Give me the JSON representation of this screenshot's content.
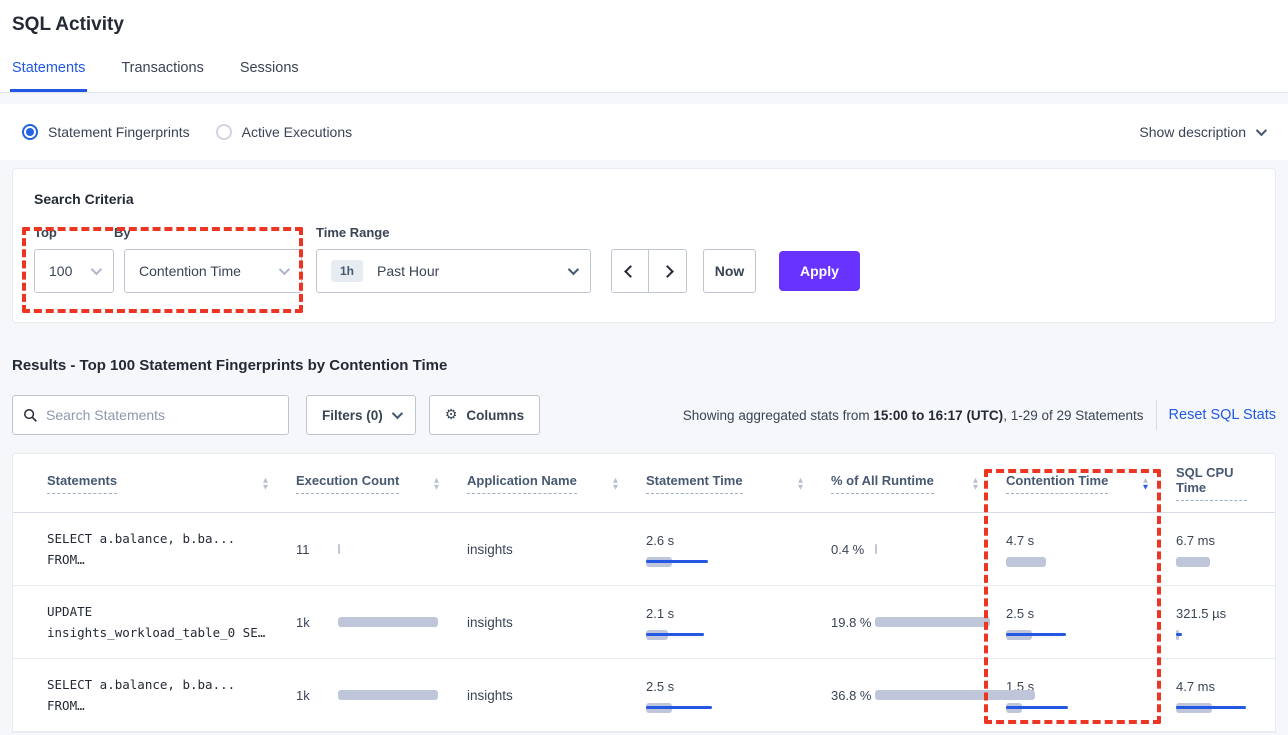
{
  "page": {
    "title": "SQL Activity"
  },
  "tabs": [
    {
      "label": "Statements"
    },
    {
      "label": "Transactions"
    },
    {
      "label": "Sessions"
    }
  ],
  "view_toggle": {
    "options": [
      {
        "label": "Statement Fingerprints",
        "selected": true
      },
      {
        "label": "Active Executions",
        "selected": false
      }
    ],
    "show_description": "Show description"
  },
  "search_criteria": {
    "title": "Search Criteria",
    "top": {
      "label": "Top",
      "value": "100"
    },
    "by": {
      "label": "By",
      "value": "Contention Time"
    },
    "time_range": {
      "label": "Time Range",
      "badge": "1h",
      "value": "Past Hour"
    },
    "now_label": "Now",
    "apply_label": "Apply"
  },
  "results": {
    "heading": "Results - Top 100 Statement Fingerprints by Contention Time",
    "search_placeholder": "Search Statements",
    "filters_label": "Filters (0)",
    "columns_label": "Columns",
    "gear_icon": "⚙",
    "stats_prefix": "Showing aggregated stats from ",
    "stats_bold": "15:00 to 16:17 (UTC)",
    "stats_suffix": ", 1-29 of 29 Statements",
    "reset_link": "Reset SQL Stats"
  },
  "table": {
    "columns": [
      {
        "label": "Statements",
        "sort": "none"
      },
      {
        "label": "Execution Count",
        "sort": "none"
      },
      {
        "label": "Application Name",
        "sort": "none"
      },
      {
        "label": "Statement Time",
        "sort": "none"
      },
      {
        "label": "% of All Runtime",
        "sort": "none"
      },
      {
        "label": "Contention Time",
        "sort": "desc"
      },
      {
        "label": "SQL CPU Time",
        "sort": "none"
      }
    ],
    "rows": [
      {
        "statement": [
          "SELECT a.balance, b.ba...",
          "FROM…"
        ],
        "exec": {
          "value": "11",
          "gray": 2,
          "blue": 0
        },
        "app": "insights",
        "stmt_time": {
          "value": "2.6 s",
          "gray": 26,
          "blue": 62
        },
        "pct": {
          "value": "0.4 %",
          "gray": 2,
          "blue": 0
        },
        "contention": {
          "value": "4.7 s",
          "gray": 40,
          "blue": 0
        },
        "cpu": {
          "value": "6.7 ms",
          "gray": 34,
          "blue": 0
        }
      },
      {
        "statement": [
          "UPDATE",
          "insights_workload_table_0 SE…"
        ],
        "exec": {
          "value": "1k",
          "gray": 100,
          "blue": 0
        },
        "app": "insights",
        "stmt_time": {
          "value": "2.1 s",
          "gray": 22,
          "blue": 58
        },
        "pct": {
          "value": "19.8 %",
          "gray": 115,
          "blue": 0
        },
        "contention": {
          "value": "2.5 s",
          "gray": 26,
          "blue": 60
        },
        "cpu": {
          "value": "321.5 µs",
          "gray": 3,
          "blue": 6
        }
      },
      {
        "statement": [
          "SELECT a.balance, b.ba...",
          "FROM…"
        ],
        "exec": {
          "value": "1k",
          "gray": 100,
          "blue": 0
        },
        "app": "insights",
        "stmt_time": {
          "value": "2.5 s",
          "gray": 26,
          "blue": 66
        },
        "pct": {
          "value": "36.8 %",
          "gray": 160,
          "blue": 0
        },
        "contention": {
          "value": "1.5 s",
          "gray": 16,
          "blue": 62
        },
        "cpu": {
          "value": "4.7 ms",
          "gray": 36,
          "blue": 70
        }
      }
    ]
  },
  "colors": {
    "accent_blue": "#2058e5",
    "apply_purple": "#6933ff",
    "bar_gray": "#c0c6d9",
    "bar_blue": "#2458e4",
    "annotation_red": "#ed3524"
  }
}
